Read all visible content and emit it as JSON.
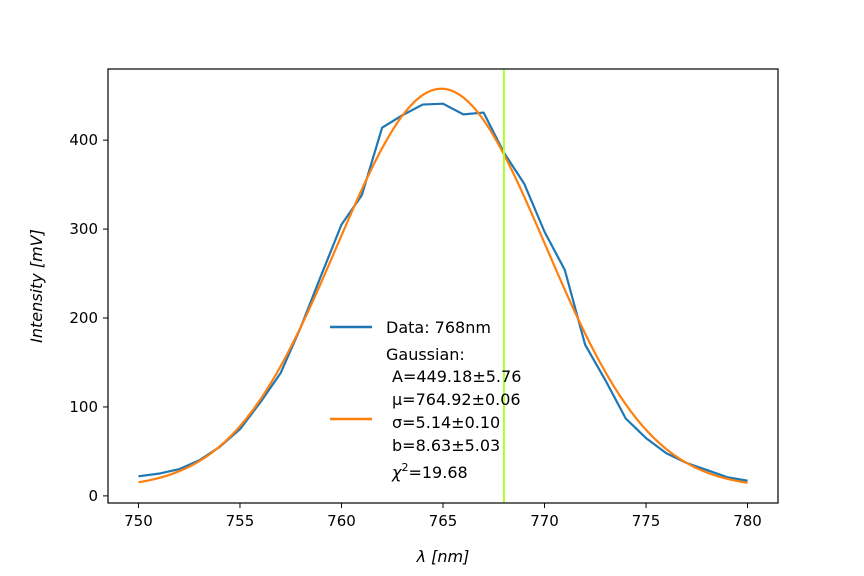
{
  "chart_data": {
    "type": "line",
    "xlabel": "λ [nm]",
    "ylabel": "Intensity [mV]",
    "xlim": [
      748.5,
      781.5
    ],
    "ylim": [
      -8,
      480
    ],
    "xticks": [
      750,
      755,
      760,
      765,
      770,
      775,
      780
    ],
    "yticks": [
      0,
      100,
      200,
      300,
      400
    ],
    "grid": false,
    "legend_position": "center",
    "vline": {
      "x": 768,
      "color": "#adff2f"
    },
    "series": [
      {
        "name": "Data: 768nm",
        "kind": "data",
        "color": "#1f77b4",
        "x": [
          750,
          751,
          752,
          753,
          754,
          755,
          756,
          757,
          758,
          759,
          760,
          761,
          762,
          763,
          764,
          765,
          766,
          767,
          768,
          769,
          770,
          771,
          772,
          773,
          774,
          775,
          776,
          777,
          778,
          779,
          780
        ],
        "y": [
          22,
          25,
          30,
          40,
          55,
          75,
          105,
          138,
          190,
          248,
          305,
          338,
          414,
          428,
          440,
          441,
          429,
          431,
          386,
          351,
          297,
          254,
          170,
          130,
          87,
          65,
          48,
          37,
          29,
          21,
          17
        ]
      },
      {
        "name": "Gaussian:",
        "kind": "fit",
        "color": "#ff7f0e",
        "model": "gaussian",
        "A": 449.18,
        "mu": 764.92,
        "sigma": 5.14,
        "b": 8.63,
        "params_text": [
          "A=449.18±5.76",
          "μ=764.92±0.06",
          "σ=5.14±0.10",
          "b=8.63±5.03"
        ],
        "chi2_label": "χ",
        "chi2_sup": "2",
        "chi2_value": "=19.68"
      }
    ]
  }
}
